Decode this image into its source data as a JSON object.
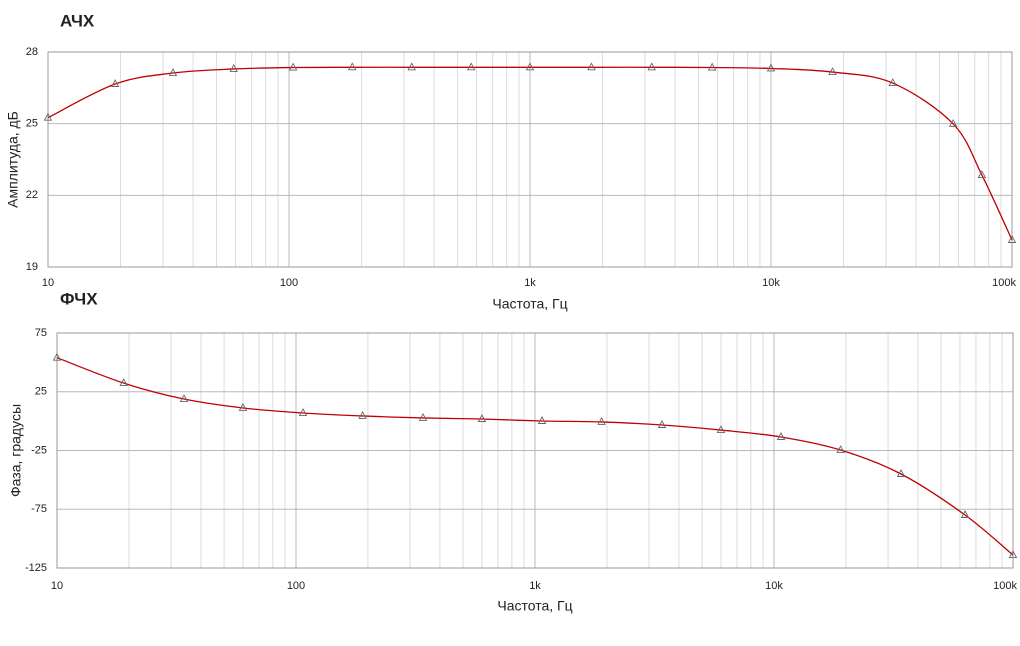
{
  "chart_data": [
    {
      "type": "line",
      "title": "АЧХ",
      "xlabel": "Частота, Гц",
      "ylabel": "Амплитуда, дБ",
      "xscale": "log",
      "grid": true,
      "minor_grid": true,
      "x": [
        10,
        19,
        33,
        59,
        104,
        183,
        323,
        570,
        1000,
        1800,
        3200,
        5700,
        10000,
        18000,
        32000,
        57000,
        75000,
        100000
      ],
      "series": [
        {
          "color": "#c00000",
          "marker_color": "#666666",
          "values": [
            25.25,
            26.66,
            27.12,
            27.29,
            27.35,
            27.36,
            27.36,
            27.36,
            27.36,
            27.36,
            27.36,
            27.35,
            27.31,
            27.16,
            26.7,
            24.99,
            22.85,
            20.13
          ]
        }
      ],
      "xlim": [
        10,
        100000
      ],
      "xticks": [
        10,
        100,
        {
          "value": 1000,
          "label": "1k"
        },
        {
          "value": 10000,
          "label": "10k"
        },
        {
          "value": 100000,
          "label": "100k"
        }
      ],
      "ylim": [
        19,
        28
      ],
      "yticks": [
        19,
        22,
        25,
        28
      ]
    },
    {
      "type": "line",
      "title": "ФЧХ",
      "xlabel": "Частота, Гц",
      "ylabel": "Фаза, градусы",
      "xscale": "log",
      "grid": true,
      "minor_grid": true,
      "x": [
        10,
        19,
        34,
        60,
        107,
        190,
        340,
        600,
        1070,
        1900,
        3400,
        6000,
        10700,
        19000,
        34000,
        63000,
        100000
      ],
      "series": [
        {
          "color": "#c00000",
          "marker_color": "#666666",
          "values": [
            54,
            32.4,
            18.8,
            11.2,
            6.9,
            4.4,
            2.7,
            1.8,
            0.1,
            -0.7,
            -3.3,
            -7.6,
            -13.5,
            -24.6,
            -45,
            -79.9,
            -114
          ]
        }
      ],
      "xlim": [
        10,
        100000
      ],
      "xticks": [
        10,
        100,
        {
          "value": 1000,
          "label": "1k"
        },
        {
          "value": 10000,
          "label": "10k"
        },
        {
          "value": 100000,
          "label": "100k"
        }
      ],
      "ylim": [
        -125,
        75
      ],
      "yticks": [
        -125,
        -75,
        -25,
        25,
        75
      ]
    }
  ]
}
